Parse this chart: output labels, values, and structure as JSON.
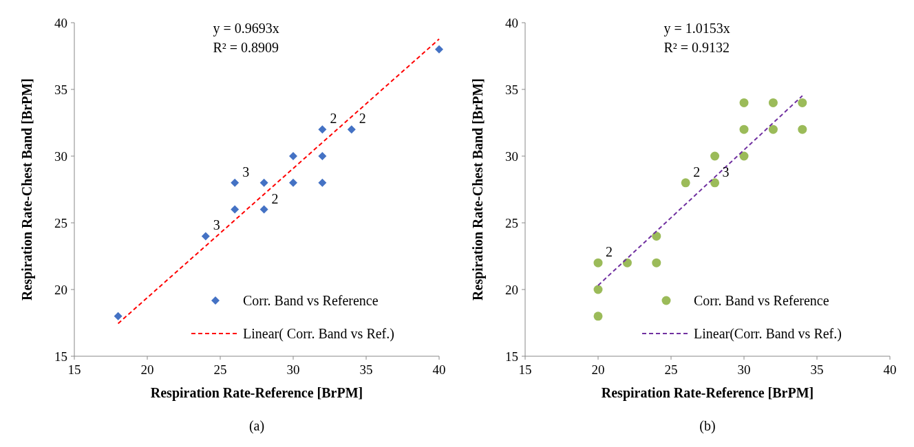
{
  "chart_data": [
    {
      "type": "scatter",
      "title": "(a)",
      "xlabel": "Respiration Rate-Reference [BrPM]",
      "ylabel": "Respiration Rate-Chest Band [BrPM]",
      "xlim": [
        15,
        40
      ],
      "ylim": [
        15,
        40
      ],
      "xticks": [
        15,
        20,
        25,
        30,
        35,
        40
      ],
      "yticks": [
        15,
        20,
        25,
        30,
        35,
        40
      ],
      "grid": false,
      "legend": "bottom right",
      "annotations": [
        "y = 0.9693x",
        "R² = 0.8909",
        {
          "text": "2",
          "x": 32,
          "y": 32
        },
        {
          "text": "2",
          "x": 34,
          "y": 32
        },
        {
          "text": "3",
          "x": 26,
          "y": 28
        },
        {
          "text": "2",
          "x": 28,
          "y": 26
        },
        {
          "text": "3",
          "x": 24,
          "y": 24
        }
      ],
      "series": [
        {
          "name": "Corr. Band vs Reference",
          "marker": "diamond",
          "color": "#4472c4",
          "x": [
            18,
            24,
            26,
            26,
            28,
            28,
            30,
            30,
            32,
            32,
            32,
            34,
            40
          ],
          "values": [
            18,
            24,
            26,
            28,
            28,
            26,
            30,
            28,
            32,
            30,
            28,
            32,
            38
          ]
        },
        {
          "name": "Linear( Corr. Band vs Ref.)",
          "type": "line",
          "line_style": "dashed",
          "color": "#ff0000",
          "x": [
            18,
            40
          ],
          "values": [
            17.45,
            38.77
          ]
        }
      ]
    },
    {
      "type": "scatter",
      "title": "(b)",
      "xlabel": "Respiration Rate-Reference [BrPM]",
      "ylabel": "Respiration Rate-Chest Band [BrPM]",
      "xlim": [
        15,
        40
      ],
      "ylim": [
        15,
        40
      ],
      "xticks": [
        15,
        20,
        25,
        30,
        35,
        40
      ],
      "yticks": [
        15,
        20,
        25,
        30,
        35,
        40
      ],
      "grid": false,
      "legend": "bottom right",
      "annotations": [
        "y = 1.0153x",
        "R² = 0.9132",
        {
          "text": "2",
          "x": 20,
          "y": 22
        },
        {
          "text": "2",
          "x": 26,
          "y": 28
        },
        {
          "text": "3",
          "x": 28,
          "y": 28
        }
      ],
      "series": [
        {
          "name": "Corr. Band vs Reference",
          "marker": "circle",
          "color": "#9bbb59",
          "x": [
            20,
            20,
            20,
            22,
            24,
            24,
            26,
            28,
            28,
            30,
            30,
            30,
            32,
            32,
            34,
            34
          ],
          "values": [
            18,
            20,
            22,
            22,
            24,
            22,
            28,
            30,
            28,
            34,
            32,
            30,
            34,
            32,
            34,
            32
          ]
        },
        {
          "name": "Linear(Corr. Band vs Ref.)",
          "type": "line",
          "line_style": "dashed",
          "color": "#7030a0",
          "x": [
            20,
            34
          ],
          "values": [
            20.31,
            34.52
          ]
        }
      ]
    }
  ]
}
